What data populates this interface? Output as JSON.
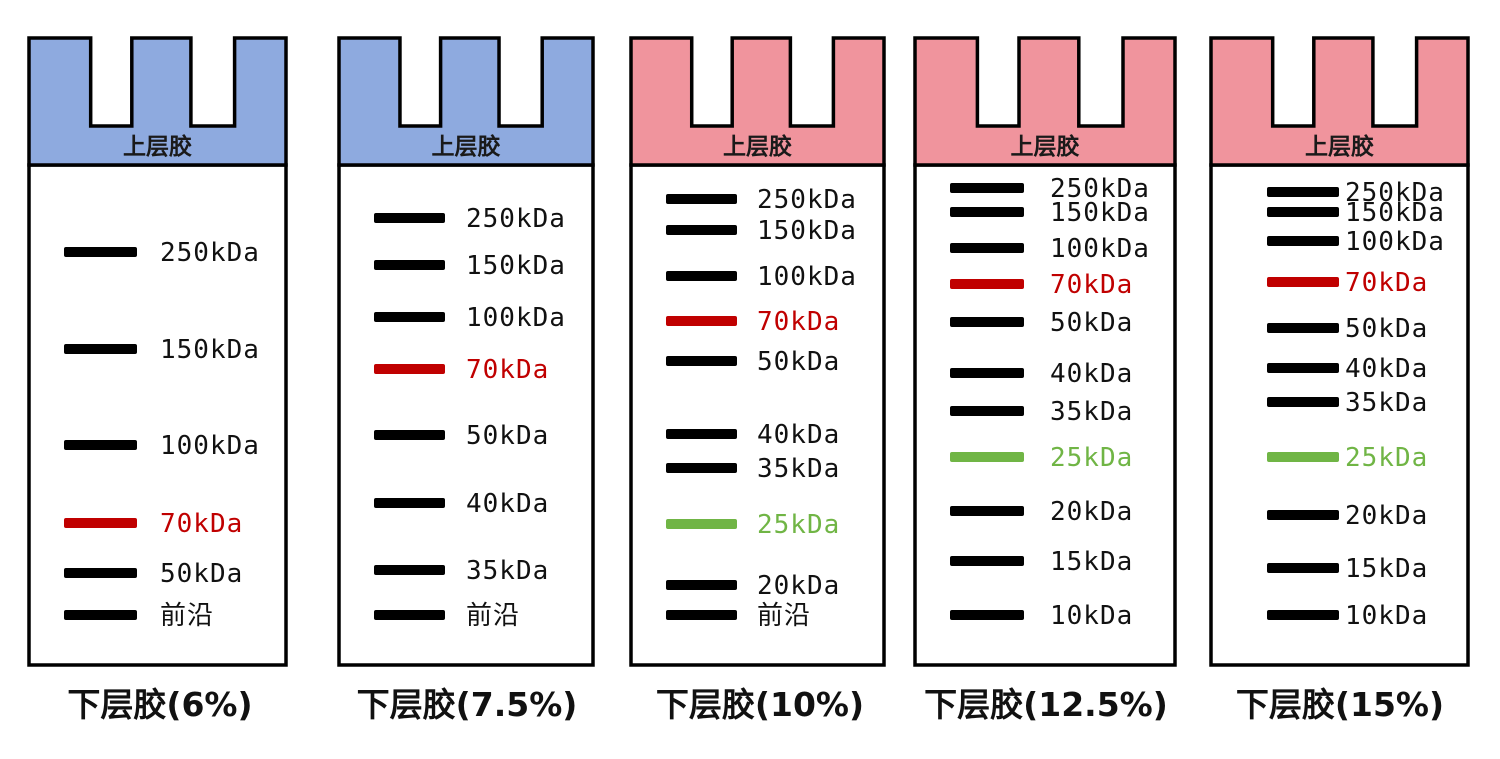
{
  "colors": {
    "blue": "#8eaadf",
    "pink": "#f0949d",
    "black": "#000000",
    "red": "#c00000",
    "green": "#70b545",
    "outline": "#000000"
  },
  "gels": [
    {
      "stacking_label": "上层胶",
      "caption": "下层胶(6%)",
      "stacking_color": "blue",
      "bands": [
        {
          "label": "250kDa",
          "color": "black"
        },
        {
          "label": "150kDa",
          "color": "black"
        },
        {
          "label": "100kDa",
          "color": "black"
        },
        {
          "label": "70kDa",
          "color": "red"
        },
        {
          "label": "50kDa",
          "color": "black"
        },
        {
          "label": "前沿",
          "color": "black"
        }
      ]
    },
    {
      "stacking_label": "上层胶",
      "caption": "下层胶(7.5%)",
      "stacking_color": "blue",
      "bands": [
        {
          "label": "250kDa",
          "color": "black"
        },
        {
          "label": "150kDa",
          "color": "black"
        },
        {
          "label": "100kDa",
          "color": "black"
        },
        {
          "label": "70kDa",
          "color": "red"
        },
        {
          "label": "50kDa",
          "color": "black"
        },
        {
          "label": "40kDa",
          "color": "black"
        },
        {
          "label": "35kDa",
          "color": "black"
        },
        {
          "label": "前沿",
          "color": "black"
        }
      ]
    },
    {
      "stacking_label": "上层胶",
      "caption": "下层胶(10%)",
      "stacking_color": "pink",
      "bands": [
        {
          "label": "250kDa",
          "color": "black"
        },
        {
          "label": "150kDa",
          "color": "black"
        },
        {
          "label": "100kDa",
          "color": "black"
        },
        {
          "label": "70kDa",
          "color": "red"
        },
        {
          "label": "50kDa",
          "color": "black"
        },
        {
          "label": "40kDa",
          "color": "black"
        },
        {
          "label": "35kDa",
          "color": "black"
        },
        {
          "label": "25kDa",
          "color": "green"
        },
        {
          "label": "20kDa",
          "color": "black"
        },
        {
          "label": "前沿",
          "color": "black"
        }
      ]
    },
    {
      "stacking_label": "上层胶",
      "caption": "下层胶(12.5%)",
      "stacking_color": "pink",
      "bands": [
        {
          "label": "250kDa",
          "color": "black"
        },
        {
          "label": "150kDa",
          "color": "black"
        },
        {
          "label": "100kDa",
          "color": "black"
        },
        {
          "label": "70kDa",
          "color": "red"
        },
        {
          "label": "50kDa",
          "color": "black"
        },
        {
          "label": "40kDa",
          "color": "black"
        },
        {
          "label": "35kDa",
          "color": "black"
        },
        {
          "label": "25kDa",
          "color": "green"
        },
        {
          "label": "20kDa",
          "color": "black"
        },
        {
          "label": "15kDa",
          "color": "black"
        },
        {
          "label": "10kDa",
          "color": "black"
        }
      ]
    },
    {
      "stacking_label": "上层胶",
      "caption": "下层胶(15%)",
      "stacking_color": "pink",
      "bands": [
        {
          "label": "250kDa",
          "color": "black"
        },
        {
          "label": "150kDa",
          "color": "black"
        },
        {
          "label": "100kDa",
          "color": "black"
        },
        {
          "label": "70kDa",
          "color": "red"
        },
        {
          "label": "50kDa",
          "color": "black"
        },
        {
          "label": "40kDa",
          "color": "black"
        },
        {
          "label": "35kDa",
          "color": "black"
        },
        {
          "label": "25kDa",
          "color": "green"
        },
        {
          "label": "20kDa",
          "color": "black"
        },
        {
          "label": "15kDa",
          "color": "black"
        },
        {
          "label": "10kDa",
          "color": "black"
        }
      ]
    }
  ]
}
